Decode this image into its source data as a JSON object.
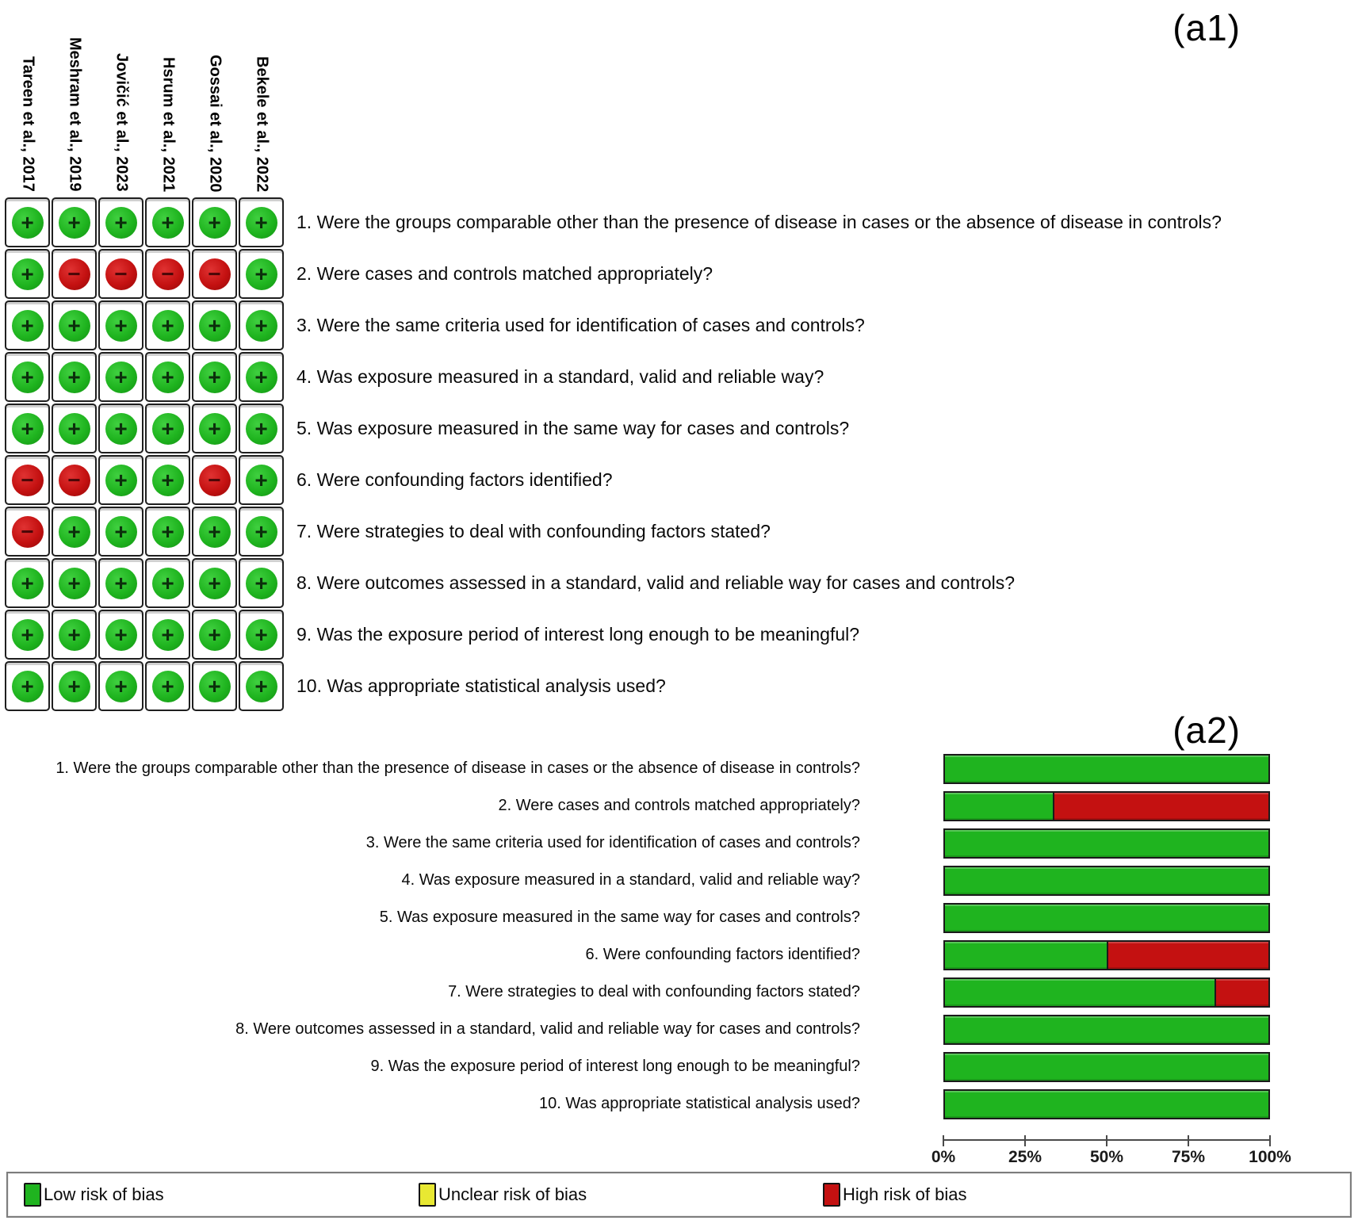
{
  "panel_a1": {
    "label": "(a1)",
    "symbols": {
      "low": "+",
      "high": "−"
    }
  },
  "panel_a2": {
    "label": "(a2)",
    "axis_ticks": [
      "0%",
      "25%",
      "50%",
      "75%",
      "100%"
    ]
  },
  "colors": {
    "low": "#1fb41f",
    "unclear": "#e8e832",
    "high": "#c41111"
  },
  "legend": {
    "items": [
      {
        "label": "Low risk of bias",
        "color": "#1fb41f"
      },
      {
        "label": "Unclear risk of bias",
        "color": "#e8e832"
      },
      {
        "label": "High risk of bias",
        "color": "#c41111"
      }
    ]
  },
  "chart_data": [
    {
      "type": "heatmap",
      "title": "(a1)",
      "columns": [
        "Tareen et al., 2017",
        "Meshram et al., 2019",
        "Jovičić et al., 2023",
        "Hsrum et al., 2021",
        "Gossai et al., 2020",
        "Bekele et al., 2022"
      ],
      "rows": [
        "1. Were the groups comparable other than the presence of disease in cases or the absence of disease in controls?",
        "2. Were cases and controls matched appropriately?",
        "3. Were the same criteria used for identification of cases and controls?",
        "4. Was exposure measured in a standard, valid and reliable way?",
        "5. Was exposure measured in the same way for cases and controls?",
        "6. Were confounding factors identified?",
        "7. Were strategies to deal with confounding factors stated?",
        "8. Were outcomes assessed in a standard, valid and reliable way for cases and controls?",
        "9. Was the exposure period of interest long enough to be meaningful?",
        "10. Was appropriate statistical analysis used?"
      ],
      "values": [
        [
          "low",
          "low",
          "low",
          "low",
          "low",
          "low"
        ],
        [
          "low",
          "high",
          "high",
          "high",
          "high",
          "low"
        ],
        [
          "low",
          "low",
          "low",
          "low",
          "low",
          "low"
        ],
        [
          "low",
          "low",
          "low",
          "low",
          "low",
          "low"
        ],
        [
          "low",
          "low",
          "low",
          "low",
          "low",
          "low"
        ],
        [
          "high",
          "high",
          "low",
          "low",
          "high",
          "low"
        ],
        [
          "high",
          "low",
          "low",
          "low",
          "low",
          "low"
        ],
        [
          "low",
          "low",
          "low",
          "low",
          "low",
          "low"
        ],
        [
          "low",
          "low",
          "low",
          "low",
          "low",
          "low"
        ],
        [
          "low",
          "low",
          "low",
          "low",
          "low",
          "low"
        ]
      ],
      "value_legend": {
        "low": "Low risk of bias (green +)",
        "high": "High risk of bias (red −)"
      }
    },
    {
      "type": "bar",
      "title": "(a2)",
      "orientation": "horizontal",
      "stacked": true,
      "categories": [
        "1. Were the groups comparable other than the presence of disease in cases or the absence of disease in controls?",
        "2. Were cases and controls matched appropriately?",
        "3. Were the same criteria used for identification of cases and controls?",
        "4. Was exposure measured in a standard, valid and reliable way?",
        "5. Was exposure measured in the same way for cases and controls?",
        "6. Were confounding factors identified?",
        "7. Were strategies to deal with confounding factors stated?",
        "8. Were outcomes assessed in a standard, valid and reliable way for cases and controls?",
        "9. Was the exposure period of interest long enough to be meaningful?",
        "10. Was appropriate statistical analysis used?"
      ],
      "series": [
        {
          "name": "Low risk of bias",
          "values": [
            100,
            33.3,
            100,
            100,
            100,
            50,
            83.3,
            100,
            100,
            100
          ]
        },
        {
          "name": "Unclear risk of bias",
          "values": [
            0,
            0,
            0,
            0,
            0,
            0,
            0,
            0,
            0,
            0
          ]
        },
        {
          "name": "High risk of bias",
          "values": [
            0,
            66.7,
            0,
            0,
            0,
            50,
            16.7,
            0,
            0,
            0
          ]
        }
      ],
      "xlim": [
        0,
        100
      ],
      "x_tick_labels": [
        "0%",
        "25%",
        "50%",
        "75%",
        "100%"
      ],
      "grid": false,
      "legend_position": "bottom"
    }
  ]
}
